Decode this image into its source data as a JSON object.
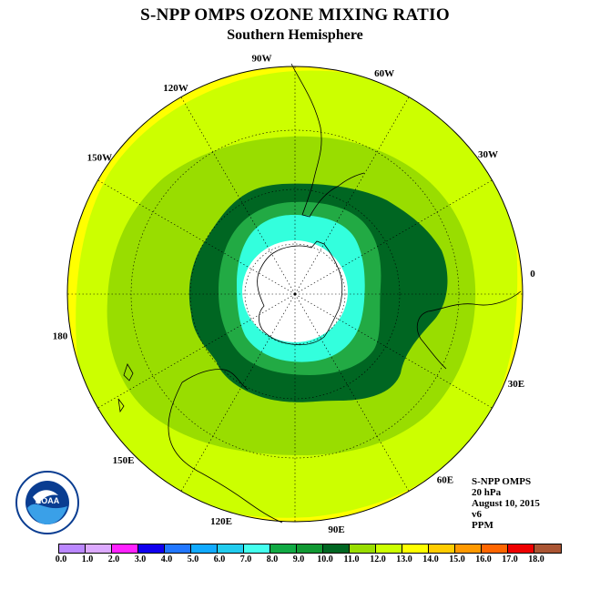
{
  "header": {
    "title": "S-NPP OMPS OZONE MIXING RATIO",
    "subtitle": "Southern Hemisphere"
  },
  "map": {
    "projection": "south-polar-stereographic",
    "longitude_labels": [
      "90W",
      "60W",
      "30W",
      "0",
      "30E",
      "60E",
      "90E",
      "120E",
      "150E",
      "180",
      "150W",
      "120W"
    ],
    "contour_colors": {
      "lt_8": "#ffffff",
      "8_to_9": "#33ffdd",
      "9_to_10": "#22aa44",
      "10_to_11": "#006622",
      "11_to_12": "#99dd00",
      "12_to_13": "#ccff00",
      "13_plus": "#ffff00"
    }
  },
  "info": {
    "instrument": "S-NPP OMPS",
    "level": "20 hPa",
    "date": "August 10, 2015",
    "version": "v6",
    "units": "PPM"
  },
  "colorbar": {
    "colors": [
      "#bb88ff",
      "#ddaaff",
      "#ff22ff",
      "#1100ee",
      "#2277ff",
      "#11aaff",
      "#22ccee",
      "#44ffee",
      "#11aa44",
      "#119933",
      "#006622",
      "#99dd00",
      "#ccff00",
      "#ffff00",
      "#ffcc00",
      "#ff9900",
      "#ff6600",
      "#ee0000",
      "#aa5533"
    ],
    "ticks": [
      "0.0",
      "1.0",
      "2.0",
      "3.0",
      "4.0",
      "5.0",
      "6.0",
      "7.0",
      "8.0",
      "9.0",
      "10.0",
      "11.0",
      "12.0",
      "13.0",
      "14.0",
      "15.0",
      "16.0",
      "17.0",
      "18.0"
    ]
  },
  "logo": {
    "name": "noaa-logo",
    "text": "NOAA"
  }
}
